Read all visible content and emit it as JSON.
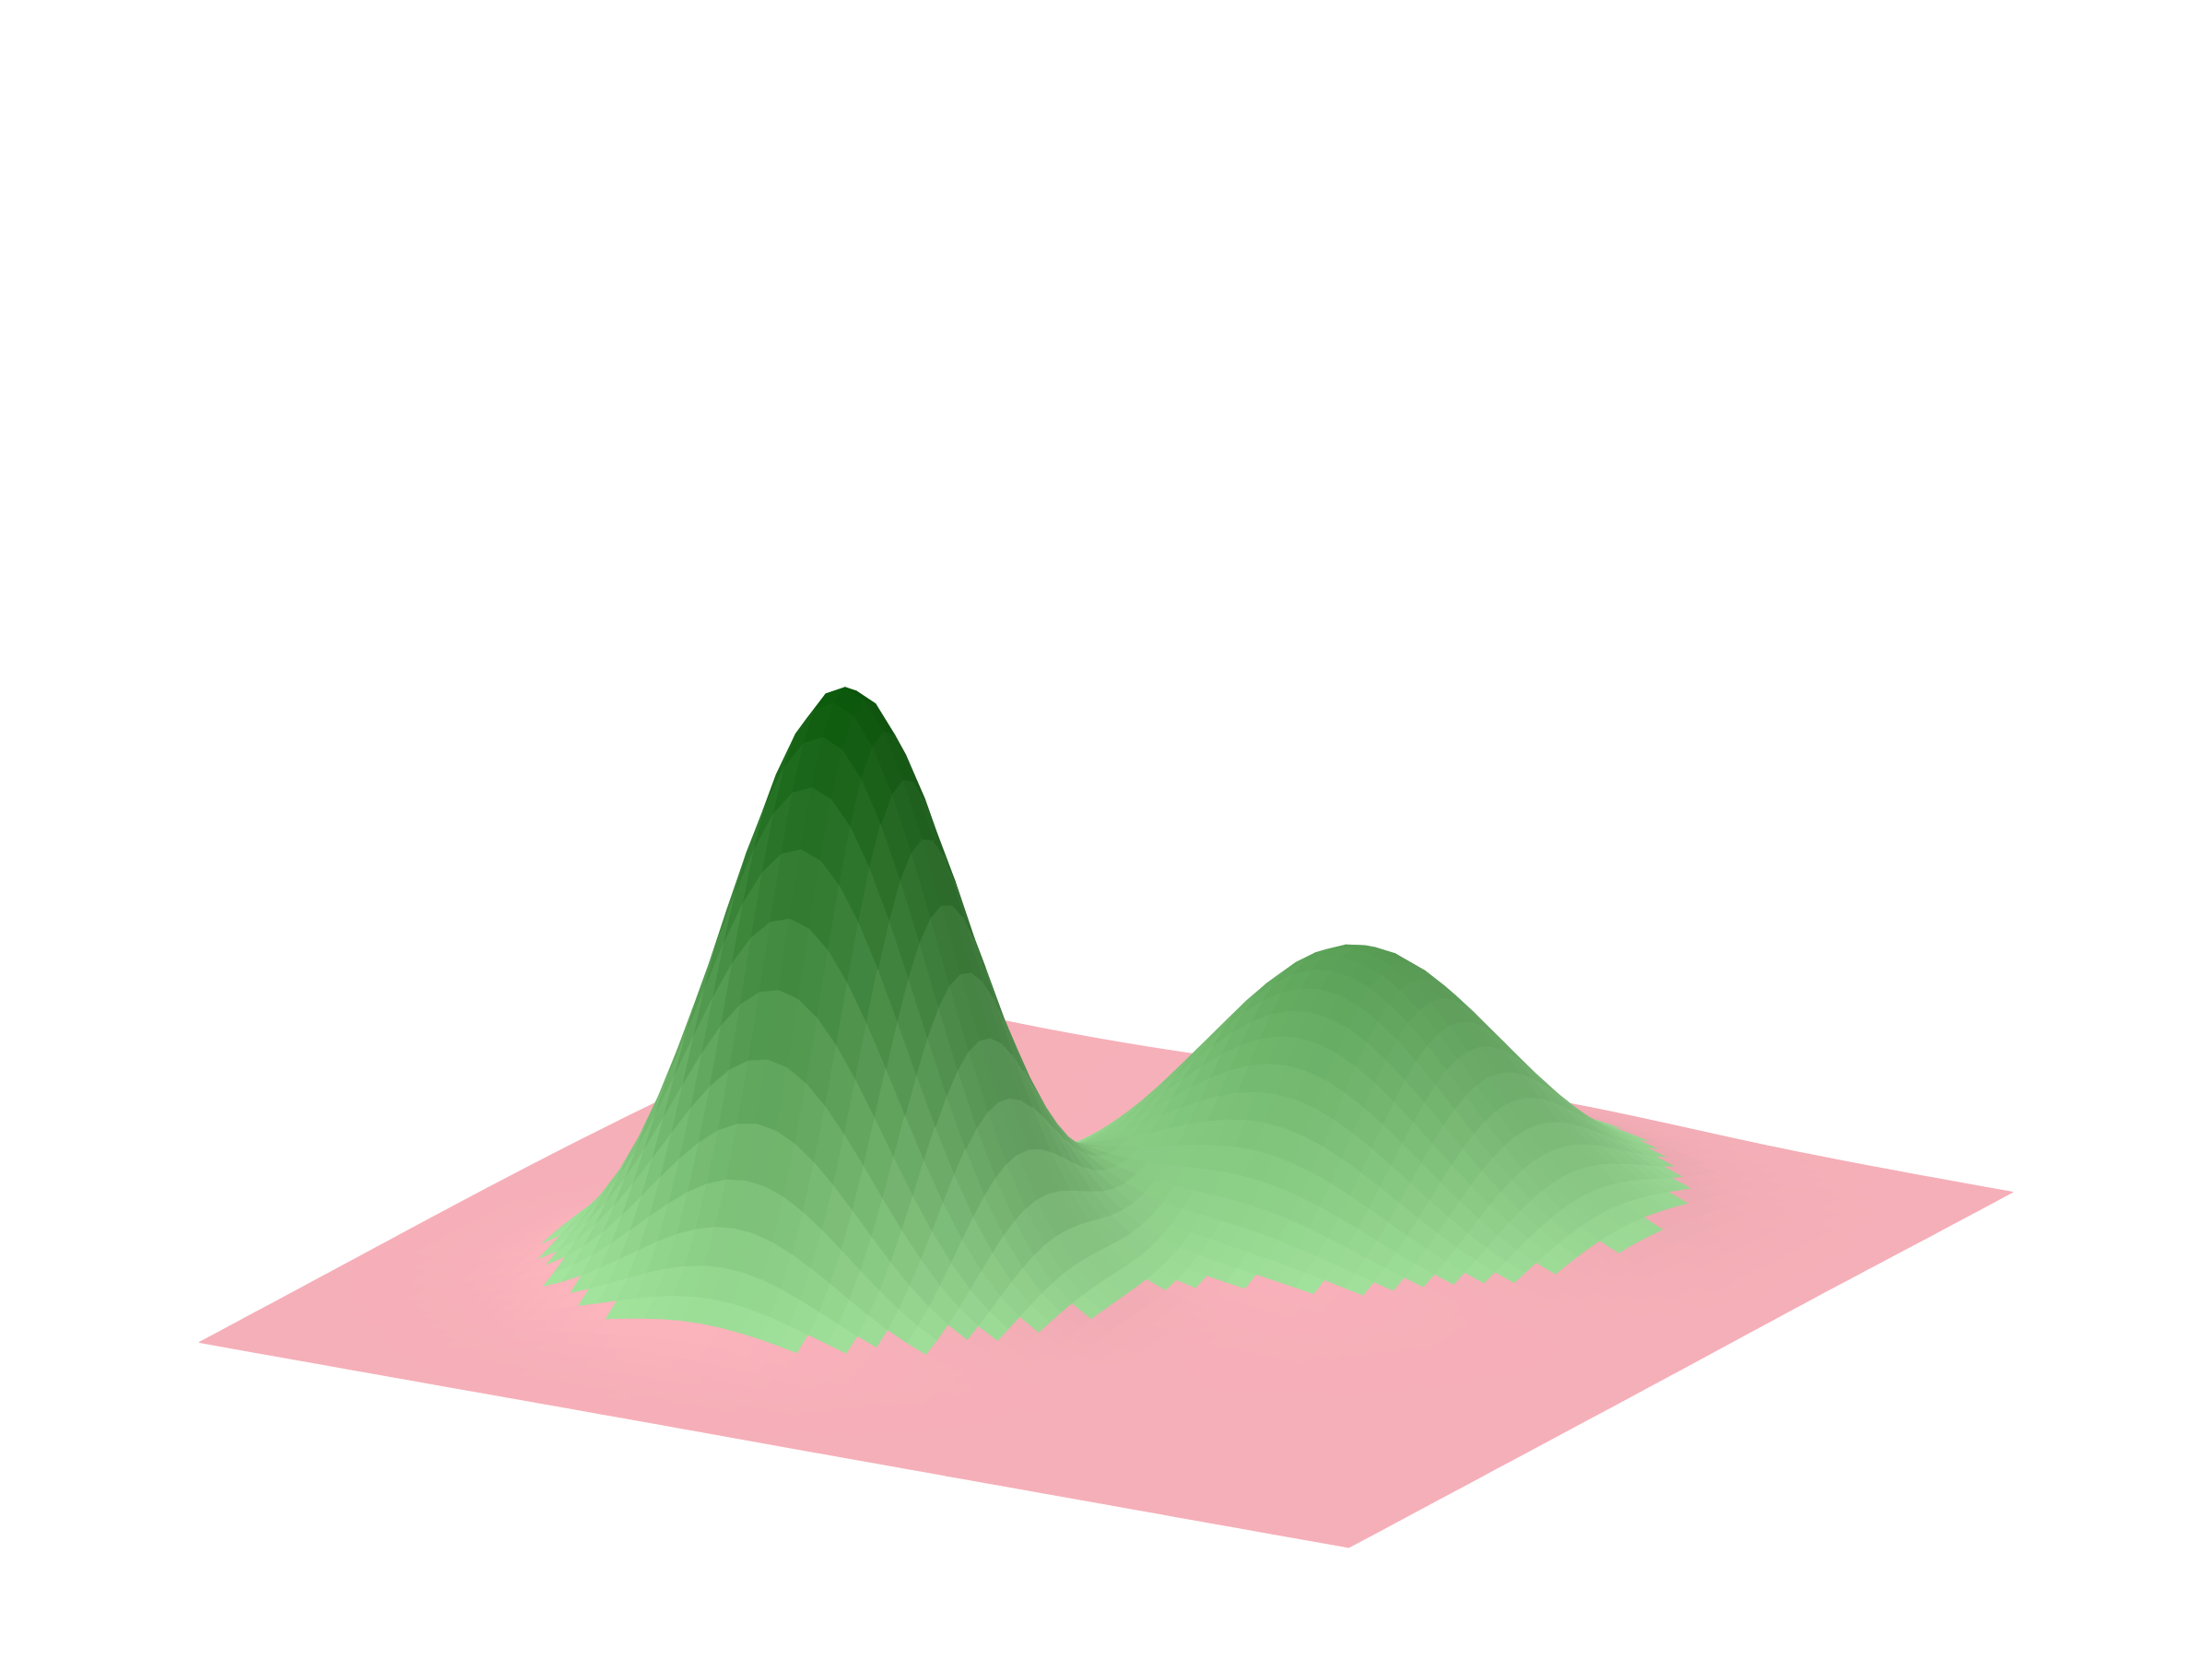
{
  "chart_data": {
    "type": "surface3d",
    "title": "",
    "xlabel": "",
    "ylabel": "",
    "zlabel": "",
    "axes_visible": false,
    "grid": false,
    "legend": "none",
    "x_range": [
      -3,
      3
    ],
    "y_range": [
      -3,
      3
    ],
    "z_range": [
      -0.2,
      2.0
    ],
    "grid_resolution": 60,
    "surface": {
      "components": [
        {
          "amplitude": 2.0,
          "center_x": -0.8,
          "center_y": -0.9,
          "sigma_x": 0.55,
          "sigma_y": 0.55
        },
        {
          "amplitude": 0.9,
          "center_x": 1.2,
          "center_y": 0.6,
          "sigma_x": 0.7,
          "sigma_y": 0.7
        },
        {
          "amplitude": -0.06,
          "center_x": 2.0,
          "center_y": -1.8,
          "sigma_x": 0.9,
          "sigma_y": 0.9
        }
      ],
      "threshold": 0.1
    },
    "colors": {
      "below_threshold": "#ffb6bf",
      "above_low": "#a6e8a0",
      "above_high": "#0b5a0b"
    },
    "view": {
      "azimuth_deg": -60,
      "elevation_deg": 18
    }
  }
}
